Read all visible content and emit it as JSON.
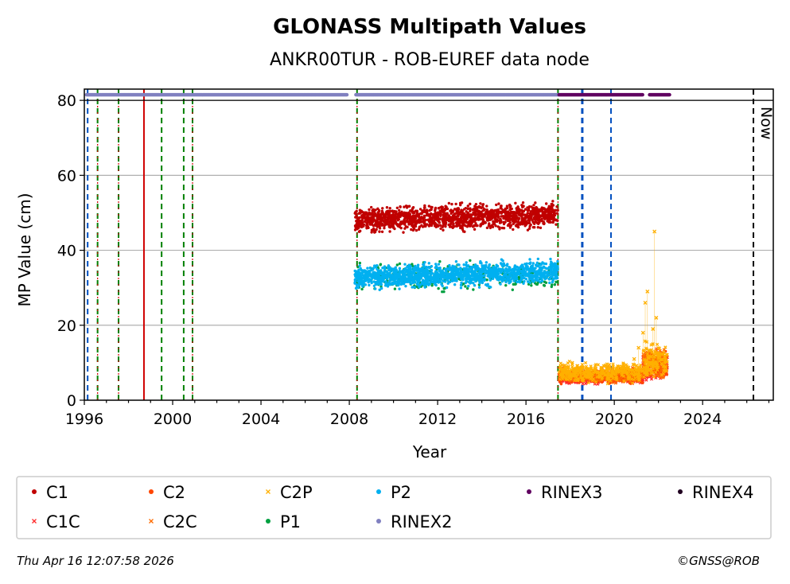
{
  "chart_data": {
    "type": "scatter",
    "title": "GLONASS Multipath Values",
    "subtitle": "ANKR00TUR - ROB-EUREF data node",
    "xlabel": "Year",
    "ylabel": "MP Value (cm)",
    "xlim": [
      1996.0,
      2027.2
    ],
    "ylim": [
      0,
      83
    ],
    "x_ticks": [
      1996,
      2000,
      2004,
      2008,
      2012,
      2016,
      2020,
      2024
    ],
    "y_ticks": [
      0,
      20,
      40,
      60,
      80
    ],
    "grid": "y",
    "now_label": "Now",
    "now_x": 2026.3,
    "series": [
      {
        "name": "C1",
        "marker": "dot",
        "color": "#c00000",
        "x_range": [
          2008.25,
          2017.45
        ],
        "center": 48,
        "trend": 1.5,
        "spread": 2.6
      },
      {
        "name": "C1C",
        "marker": "x",
        "color": "#ff2a2a",
        "x_range": [
          2017.5,
          2022.4
        ],
        "center": 6,
        "spread": 1.2
      },
      {
        "name": "C2",
        "marker": "dot",
        "color": "#ff4500",
        "x_range": [
          2017.5,
          2022.4
        ],
        "center": 6.5,
        "spread": 1.4
      },
      {
        "name": "C2C",
        "marker": "x",
        "color": "#ff6a00",
        "x_range": [
          2017.5,
          2022.4
        ],
        "center": 6.8,
        "spread": 1.5
      },
      {
        "name": "C2P",
        "marker": "x",
        "color": "#ffb000",
        "x_range": [
          2017.5,
          2022.4
        ],
        "center": 7.5,
        "spread": 2.0
      },
      {
        "name": "P1",
        "marker": "dot",
        "color": "#00a040",
        "x_range": [
          2008.25,
          2017.45
        ],
        "center": 33,
        "spread": 3.0
      },
      {
        "name": "P2",
        "marker": "dot",
        "color": "#00b0f0",
        "x_range": [
          2008.25,
          2017.45
        ],
        "center": 32.5,
        "trend": 2.0,
        "spread": 2.4
      },
      {
        "name": "RINEX2",
        "marker": "dot",
        "color": "#8080c0",
        "segments": [
          [
            1996.1,
            2007.9
          ],
          [
            2008.3,
            2017.5
          ]
        ],
        "y": 81.5
      },
      {
        "name": "RINEX3",
        "marker": "dot",
        "color": "#600060",
        "segments": [
          [
            2017.5,
            2021.3
          ],
          [
            2021.6,
            2022.5
          ]
        ],
        "y": 81.5
      },
      {
        "name": "RINEX4",
        "marker": "dot",
        "color": "#200020",
        "segments": [],
        "y": 81.5
      }
    ],
    "spikes": [
      {
        "x": 2021.3,
        "y": 18
      },
      {
        "x": 2021.4,
        "y": 26
      },
      {
        "x": 2021.5,
        "y": 29
      },
      {
        "x": 2021.75,
        "y": 19
      },
      {
        "x": 2021.82,
        "y": 45
      },
      {
        "x": 2021.9,
        "y": 22
      },
      {
        "x": 2021.1,
        "y": 14
      },
      {
        "x": 2020.9,
        "y": 11
      }
    ],
    "vlines": [
      {
        "x": 1996.15,
        "color": "#0050c0",
        "style": "dashed"
      },
      {
        "x": 1996.6,
        "color": "#008000",
        "style": "dashed",
        "overlay": "#d00000"
      },
      {
        "x": 1997.55,
        "color": "#008000",
        "style": "dashed",
        "overlay": "#d00000"
      },
      {
        "x": 1998.7,
        "color": "#d00000",
        "style": "solid"
      },
      {
        "x": 1999.5,
        "color": "#008000",
        "style": "dashed"
      },
      {
        "x": 2000.5,
        "color": "#008000",
        "style": "dashed"
      },
      {
        "x": 2000.9,
        "color": "#008000",
        "style": "dashed",
        "overlay": "#d00000"
      },
      {
        "x": 2008.35,
        "color": "#008000",
        "style": "dashed",
        "overlay": "#d00000"
      },
      {
        "x": 2017.45,
        "color": "#008000",
        "style": "dashed",
        "overlay": "#d00000"
      },
      {
        "x": 2018.55,
        "color": "#0050c0",
        "style": "dashed",
        "thick": true
      },
      {
        "x": 2019.85,
        "color": "#0050c0",
        "style": "dashed"
      },
      {
        "x": 2026.3,
        "color": "#000000",
        "style": "dashed"
      }
    ],
    "legend": {
      "placement": "bottom",
      "rows": [
        [
          "C1",
          "C2",
          "C2P",
          "P2",
          "RINEX3",
          "RINEX4"
        ],
        [
          "C1C",
          "C2C",
          "P1",
          "RINEX2"
        ]
      ]
    }
  },
  "footer": {
    "timestamp": "Thu Apr 16 12:07:58 2026",
    "credit": "©GNSS@ROB"
  }
}
